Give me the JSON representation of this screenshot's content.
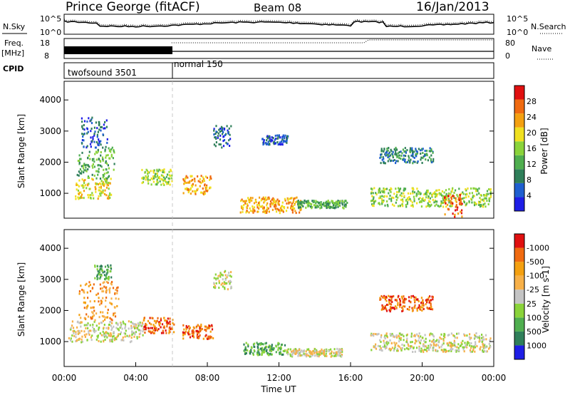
{
  "header": {
    "station": "Prince George (fitACF)",
    "beam": "Beam 08",
    "date": "16/Jan/2013"
  },
  "noise_panel": {
    "left_label": "N.Sky",
    "right_label": "N.Search",
    "tick_top": "10^5",
    "tick_bottom": "10^0",
    "right_tick_top": "10^5",
    "right_tick_bottom": "10^0"
  },
  "freq_panel": {
    "left_label_line1": "Freq.",
    "left_label_line2": "[MHz]",
    "left_ticks": [
      "18",
      "8"
    ],
    "right_label": "Nave",
    "right_ticks": [
      "80",
      "0"
    ]
  },
  "cpid_panel": {
    "label": "CPID",
    "modes": [
      {
        "name": "twofsound 3501",
        "start_hour": 0,
        "end_hour": 6
      },
      {
        "name": "normal 150",
        "start_hour": 6,
        "end_hour": 24
      }
    ]
  },
  "colors": {
    "blue": "#1e1ee6",
    "dark_green": "#2f7f5a",
    "green": "#4fae4f",
    "lime": "#8ad33a",
    "yellow": "#f0e020",
    "orange": "#f4a010",
    "dark_orange": "#f06a10",
    "red": "#e01010",
    "grey": "#c4c4c4",
    "light_orange": "#f7b048"
  },
  "chart_data": [
    {
      "type": "heatmap",
      "name": "power",
      "ylabel": "Slant Range [km]",
      "y_ticks": [
        1000,
        2000,
        3000,
        4000
      ],
      "ylim": [
        200,
        4600
      ],
      "xlim": [
        0,
        24
      ],
      "colorbar_label": "Power [dB]",
      "colorbar_ticks": [
        "4",
        "8",
        "12",
        "16",
        "20",
        "24",
        "28"
      ],
      "colorbar_colors": [
        "#1e1ee6",
        "#1f5fd0",
        "#2f7f5a",
        "#4fae4f",
        "#8ad33a",
        "#f0e020",
        "#f4a010",
        "#f06a10",
        "#e01010"
      ],
      "regions": [
        {
          "t0": 0.6,
          "t1": 2.6,
          "r0": 850,
          "r1": 1500,
          "level": 5
        },
        {
          "t0": 0.7,
          "t1": 2.8,
          "r0": 1500,
          "r1": 2500,
          "level": 3
        },
        {
          "t0": 0.9,
          "t1": 2.4,
          "r0": 2500,
          "r1": 3500,
          "level": 1
        },
        {
          "t0": 4.3,
          "t1": 6.0,
          "r0": 1300,
          "r1": 1800,
          "level": 4
        },
        {
          "t0": 6.6,
          "t1": 8.2,
          "r0": 1000,
          "r1": 1600,
          "level": 6
        },
        {
          "t0": 8.3,
          "t1": 9.3,
          "r0": 2500,
          "r1": 3200,
          "level": 1
        },
        {
          "t0": 11.0,
          "t1": 12.5,
          "r0": 2600,
          "r1": 2900,
          "level": 1
        },
        {
          "t0": 9.8,
          "t1": 13.2,
          "r0": 400,
          "r1": 900,
          "level": 6
        },
        {
          "t0": 13.0,
          "t1": 15.8,
          "r0": 550,
          "r1": 800,
          "level": 3
        },
        {
          "t0": 17.1,
          "t1": 23.8,
          "r0": 600,
          "r1": 1200,
          "level": 4
        },
        {
          "t0": 21.2,
          "t1": 22.2,
          "r0": 250,
          "r1": 1000,
          "level": 7
        },
        {
          "t0": 17.6,
          "t1": 20.6,
          "r0": 2000,
          "r1": 2500,
          "level": 2
        }
      ]
    },
    {
      "type": "heatmap",
      "name": "velocity",
      "xlabel": "Time UT",
      "ylabel": "Slant Range [km]",
      "y_ticks": [
        1000,
        2000,
        3000,
        4000
      ],
      "ylim": [
        200,
        4600
      ],
      "xlim": [
        0,
        24
      ],
      "x_tick_labels": [
        "00:00",
        "04:00",
        "08:00",
        "12:00",
        "16:00",
        "20:00",
        "00:00"
      ],
      "x_tick_hours": [
        0,
        4,
        8,
        12,
        16,
        20,
        24
      ],
      "colorbar_label": "Velocity [m s-1]",
      "colorbar_ticks": [
        "1000",
        "500",
        "100",
        "25",
        "-25",
        "-100",
        "-500",
        "-1000"
      ],
      "colorbar_colors": [
        "#1e1ee6",
        "#2f7f5a",
        "#4fae4f",
        "#8ad33a",
        "#c4c4c4",
        "#f7b048",
        "#f4a010",
        "#f06a10",
        "#e01010"
      ],
      "regions": [
        {
          "t0": 0.2,
          "t1": 4.4,
          "r0": 1000,
          "r1": 1700,
          "level": 4
        },
        {
          "t0": 0.8,
          "t1": 3.0,
          "r0": 1700,
          "r1": 3000,
          "level": 6
        },
        {
          "t0": 1.6,
          "t1": 2.6,
          "r0": 3000,
          "r1": 3500,
          "level": 2
        },
        {
          "t0": 4.4,
          "t1": 6.1,
          "r0": 1300,
          "r1": 1800,
          "level": 7
        },
        {
          "t0": 6.6,
          "t1": 8.3,
          "r0": 1100,
          "r1": 1600,
          "level": 7
        },
        {
          "t0": 8.3,
          "t1": 9.3,
          "r0": 2700,
          "r1": 3300,
          "level": 4
        },
        {
          "t0": 10.0,
          "t1": 12.3,
          "r0": 600,
          "r1": 1000,
          "level": 2
        },
        {
          "t0": 12.4,
          "t1": 15.5,
          "r0": 550,
          "r1": 800,
          "level": 4
        },
        {
          "t0": 17.1,
          "t1": 23.8,
          "r0": 700,
          "r1": 1300,
          "level": 4
        },
        {
          "t0": 17.6,
          "t1": 20.6,
          "r0": 2000,
          "r1": 2500,
          "level": 7
        }
      ]
    }
  ],
  "axis_labels": {
    "ylabel": "Slant Range [km]",
    "xlabel": "Time UT",
    "power_label": "Power [dB]",
    "velocity_label": "Velocity [m s-1]"
  }
}
